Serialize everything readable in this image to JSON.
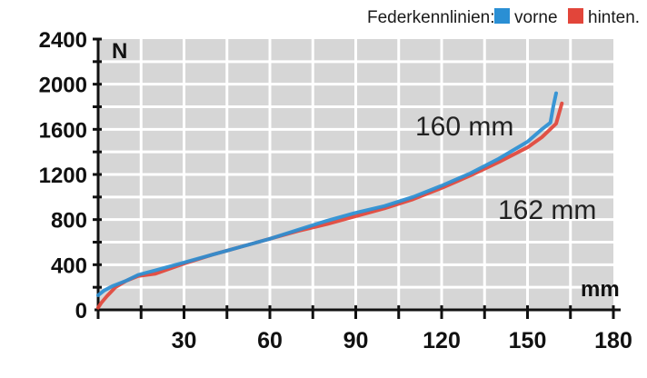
{
  "legend": {
    "prefix": "Federkennlinien:",
    "front_label": "vorne",
    "rear_label": "hinten."
  },
  "colors": {
    "plot_background": "#d6d6d6",
    "grid": "#ffffff",
    "front": "#2a8fd4",
    "rear": "#e2453a",
    "axis": "#111111"
  },
  "chart_data": {
    "type": "line",
    "xlabel": "mm",
    "ylabel": "N",
    "xlim": [
      0,
      180
    ],
    "ylim": [
      0,
      2400
    ],
    "x_ticks": [
      30,
      60,
      90,
      120,
      150,
      180
    ],
    "y_ticks": [
      0,
      400,
      800,
      1200,
      1600,
      2000,
      2400
    ],
    "grid": true,
    "legend_position": "top-right",
    "series": [
      {
        "name": "vorne",
        "x": [
          0,
          2,
          5,
          10,
          14,
          20,
          30,
          40,
          50,
          60,
          70,
          80,
          90,
          100,
          110,
          120,
          130,
          140,
          150,
          155,
          158,
          159,
          160
        ],
        "y": [
          130,
          170,
          210,
          260,
          310,
          350,
          420,
          490,
          560,
          630,
          710,
          790,
          860,
          920,
          1000,
          1100,
          1210,
          1340,
          1490,
          1600,
          1660,
          1800,
          1920
        ]
      },
      {
        "name": "hinten",
        "x": [
          0,
          1,
          3,
          6,
          10,
          14,
          20,
          30,
          40,
          50,
          60,
          70,
          80,
          90,
          100,
          110,
          120,
          130,
          140,
          150,
          155,
          160,
          162
        ],
        "y": [
          20,
          60,
          120,
          200,
          260,
          300,
          320,
          410,
          490,
          560,
          630,
          700,
          760,
          830,
          900,
          980,
          1080,
          1190,
          1310,
          1440,
          1530,
          1650,
          1830
        ]
      }
    ],
    "annotations": [
      "160 mm",
      "162 mm"
    ]
  }
}
